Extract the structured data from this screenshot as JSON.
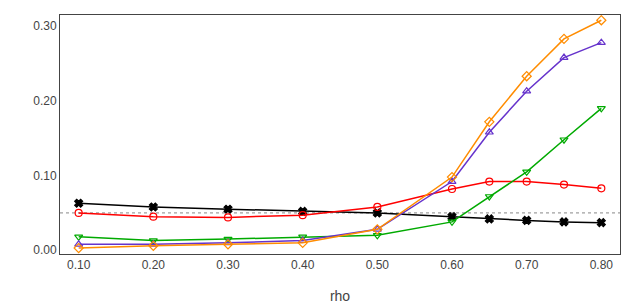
{
  "chart_data": {
    "type": "line",
    "xlabel": "rho",
    "x": [
      0.1,
      0.2,
      0.3,
      0.4,
      0.5,
      0.6,
      0.65,
      0.7,
      0.75,
      0.8
    ],
    "series": [
      {
        "color": "#000000",
        "marker": "x",
        "line_style": "solid",
        "values": [
          0.063,
          0.058,
          0.055,
          0.052,
          0.05,
          0.045,
          0.042,
          0.04,
          0.038,
          0.037
        ]
      },
      {
        "color": "#FF0000",
        "marker": "circle-open",
        "line_style": "solid",
        "values": [
          0.05,
          0.045,
          0.044,
          0.047,
          0.058,
          0.082,
          0.092,
          0.092,
          0.088,
          0.083
        ]
      },
      {
        "color": "#00AA00",
        "marker": "triangle-down-open",
        "line_style": "solid",
        "values": [
          0.018,
          0.013,
          0.015,
          0.018,
          0.02,
          0.038,
          0.072,
          0.105,
          0.148,
          0.19
        ]
      },
      {
        "color": "#6633CC",
        "marker": "triangle-up-open",
        "line_style": "solid",
        "values": [
          0.008,
          0.008,
          0.01,
          0.013,
          0.028,
          0.092,
          0.158,
          0.213,
          0.258,
          0.278
        ]
      },
      {
        "color": "#FF8C00",
        "marker": "diamond-open",
        "line_style": "solid",
        "values": [
          0.003,
          0.006,
          0.008,
          0.01,
          0.028,
          0.098,
          0.172,
          0.233,
          0.283,
          0.308
        ]
      }
    ],
    "hlines": [
      {
        "y": 0.05,
        "color": "#888888",
        "line_style": "dotted"
      }
    ],
    "xlim": [
      0.075,
      0.825
    ],
    "ylim": [
      -0.005,
      0.315
    ],
    "xticks": [
      {
        "value": 0.1,
        "label": "0.10"
      },
      {
        "value": 0.2,
        "label": "0.20"
      },
      {
        "value": 0.3,
        "label": "0.30"
      },
      {
        "value": 0.4,
        "label": "0.40"
      },
      {
        "value": 0.5,
        "label": "0.50"
      },
      {
        "value": 0.6,
        "label": "0.60"
      },
      {
        "value": 0.7,
        "label": "0.70"
      },
      {
        "value": 0.8,
        "label": "0.80"
      }
    ],
    "yticks": [
      {
        "value": 0,
        "label": "0.00"
      },
      {
        "value": 0.1,
        "label": "0.10"
      },
      {
        "value": 0.2,
        "label": "0.20"
      },
      {
        "value": 0.3,
        "label": "0.30"
      }
    ],
    "grid": false
  }
}
